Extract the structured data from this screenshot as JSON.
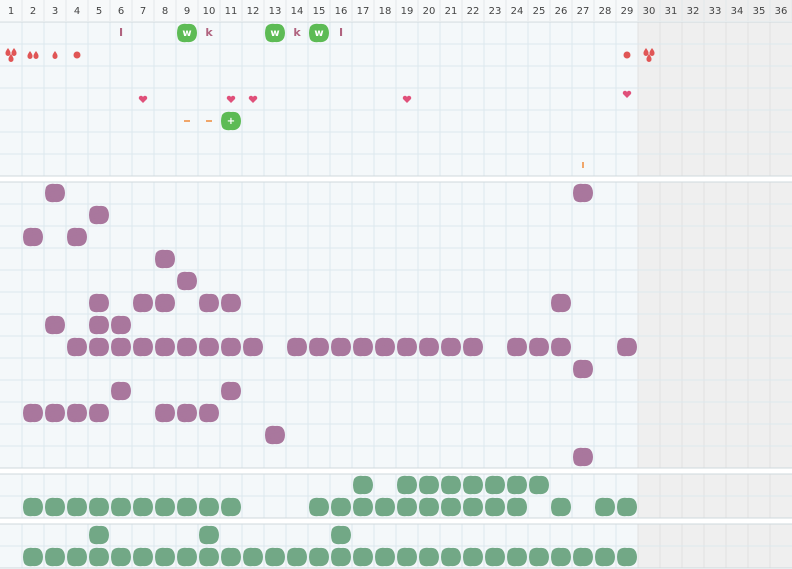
{
  "header": {
    "columns": [
      1,
      2,
      3,
      4,
      5,
      6,
      7,
      8,
      9,
      10,
      11,
      12,
      13,
      14,
      15,
      16,
      17,
      18,
      19,
      20,
      21,
      22,
      23,
      24,
      25,
      26,
      27,
      28,
      29,
      30,
      31,
      32,
      33,
      34,
      35,
      36
    ]
  },
  "sections": [
    {
      "palette": "icons",
      "rows": [
        {
          "marks": [
            {
              "col": 6,
              "kind": "text",
              "label": "I"
            },
            {
              "col": 9,
              "kind": "badge",
              "label": "w"
            },
            {
              "col": 10,
              "kind": "text",
              "label": "k"
            },
            {
              "col": 13,
              "kind": "badge",
              "label": "w"
            },
            {
              "col": 14,
              "kind": "text",
              "label": "k"
            },
            {
              "col": 15,
              "kind": "badge",
              "label": "w"
            },
            {
              "col": 16,
              "kind": "text",
              "label": "I"
            }
          ]
        },
        {
          "marks": [
            {
              "col": 1,
              "kind": "drops"
            },
            {
              "col": 2,
              "kind": "drops"
            },
            {
              "col": 3,
              "kind": "drop"
            },
            {
              "col": 4,
              "kind": "dot"
            },
            {
              "col": 29,
              "kind": "dot"
            },
            {
              "col": 30,
              "kind": "drops"
            }
          ]
        },
        {
          "marks": []
        },
        {
          "marks": [
            {
              "col": 7,
              "kind": "heart"
            },
            {
              "col": 11,
              "kind": "heart"
            },
            {
              "col": 12,
              "kind": "heart"
            },
            {
              "col": 19,
              "kind": "heart"
            },
            {
              "col": 29,
              "kind": "heart"
            }
          ]
        },
        {
          "marks": [
            {
              "col": 9,
              "kind": "dash"
            },
            {
              "col": 10,
              "kind": "dash"
            },
            {
              "col": 11,
              "kind": "badge",
              "label": "+"
            }
          ]
        },
        {
          "marks": []
        },
        {
          "marks": [
            {
              "col": 27,
              "kind": "tick"
            }
          ]
        }
      ]
    },
    {
      "palette": "purple",
      "rows": [
        {
          "cols": [
            3,
            27
          ]
        },
        {
          "cols": [
            5
          ]
        },
        {
          "cols": [
            2,
            4
          ]
        },
        {
          "cols": [
            8
          ]
        },
        {
          "cols": [
            9
          ]
        },
        {
          "cols": [
            5,
            7,
            8,
            10,
            11,
            26
          ]
        },
        {
          "cols": [
            3,
            5,
            6
          ]
        },
        {
          "cols": [
            4,
            5,
            6,
            7,
            8,
            9,
            10,
            11,
            12,
            14,
            15,
            16,
            17,
            18,
            19,
            20,
            21,
            22,
            24,
            25,
            26,
            29
          ]
        },
        {
          "cols": [
            27
          ]
        },
        {
          "cols": [
            6,
            11
          ]
        },
        {
          "cols": [
            2,
            3,
            4,
            5,
            8,
            9,
            10
          ]
        },
        {
          "cols": [
            13
          ]
        },
        {
          "cols": [
            27
          ]
        }
      ]
    },
    {
      "palette": "green",
      "rows": [
        {
          "cols": [
            17,
            19,
            20,
            21,
            22,
            23,
            24,
            25
          ]
        },
        {
          "cols": [
            2,
            3,
            4,
            5,
            6,
            7,
            8,
            9,
            10,
            11,
            15,
            16,
            17,
            18,
            19,
            20,
            21,
            22,
            23,
            24,
            26,
            28,
            29
          ]
        }
      ]
    },
    {
      "palette": "green",
      "rows": [
        {
          "cols": [
            5,
            10,
            16
          ]
        },
        {
          "cols": [
            2,
            3,
            4,
            5,
            6,
            7,
            8,
            9,
            10,
            11,
            12,
            13,
            14,
            15,
            16,
            17,
            18,
            19,
            20,
            21,
            22,
            23,
            24,
            25,
            26,
            27,
            28,
            29
          ]
        }
      ]
    }
  ]
}
